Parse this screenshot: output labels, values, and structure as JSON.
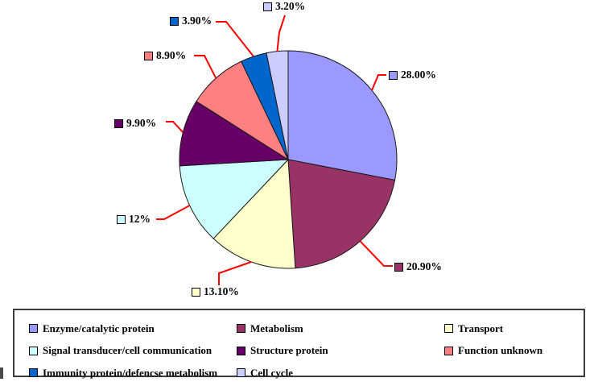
{
  "chart_data": {
    "type": "pie",
    "title": "",
    "start_angle_deg": 0,
    "direction": "clockwise",
    "legend_position": "bottom",
    "leader_line_color": "#FF0000",
    "outline_color": "#1a1a1a",
    "background_color": "#FFFFFF",
    "slices": [
      {
        "label": "Enzyme/catalytic protein",
        "value": 28.0,
        "display": "28.00%",
        "color": "#9999FF"
      },
      {
        "label": "Metabolism",
        "value": 20.9,
        "display": "20.90%",
        "color": "#993366"
      },
      {
        "label": "Transport",
        "value": 13.1,
        "display": "13.10%",
        "color": "#FFFFCC"
      },
      {
        "label": "Signal transducer/cell communication",
        "value": 12.0,
        "display": "12%",
        "color": "#CCFFFF"
      },
      {
        "label": "Structure protein",
        "value": 9.9,
        "display": "9.90%",
        "color": "#660066"
      },
      {
        "label": "Function unknown",
        "value": 8.9,
        "display": "8.90%",
        "color": "#FF8080"
      },
      {
        "label": "Immunity protein/defencse metabolism",
        "value": 3.9,
        "display": "3.90%",
        "color": "#0066CC"
      },
      {
        "label": "Cell cycle",
        "value": 3.2,
        "display": "3.20%",
        "color": "#CCCCFF"
      }
    ]
  }
}
